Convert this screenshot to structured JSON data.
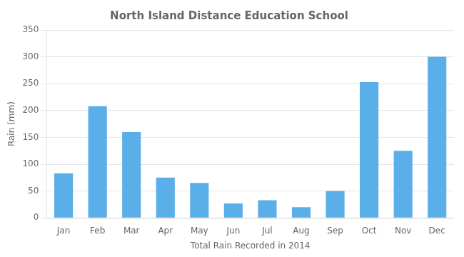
{
  "chart_data": {
    "type": "bar",
    "title": "North Island Distance Education School",
    "xlabel": "Total Rain Recorded in 2014",
    "ylabel": "Rain (mm)",
    "categories": [
      "Jan",
      "Feb",
      "Mar",
      "Apr",
      "May",
      "Jun",
      "Jul",
      "Aug",
      "Sep",
      "Oct",
      "Nov",
      "Dec"
    ],
    "values": [
      83,
      208,
      160,
      75,
      65,
      27,
      33,
      20,
      50,
      253,
      125,
      300
    ],
    "color": "#5AAFE8",
    "ylim": [
      0,
      350
    ],
    "yticks": [
      0,
      50,
      100,
      150,
      200,
      250,
      300,
      350
    ],
    "grid": true
  }
}
